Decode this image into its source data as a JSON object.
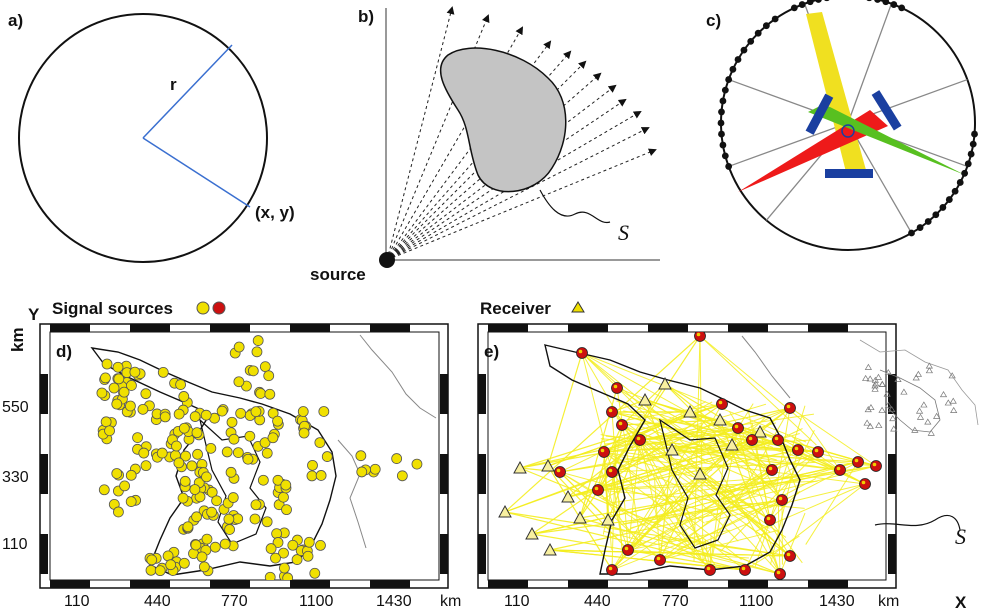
{
  "panels": {
    "a": {
      "label": "a)",
      "radius_label": "r",
      "point_label": "(x, y)"
    },
    "b": {
      "label": "b)",
      "source_label": "source",
      "object_label": "S"
    },
    "c": {
      "label": "c)"
    },
    "d": {
      "label": "d)",
      "legend": "Signal sources",
      "y_axis_title": "Y",
      "y_axis_unit": "km",
      "x_axis_unit": "km",
      "x_ticks": [
        "110",
        "440",
        "770",
        "1100",
        "1430"
      ],
      "y_ticks": [
        "550",
        "330",
        "110"
      ]
    },
    "e": {
      "label": "e)",
      "legend": "Receiver",
      "x_axis_unit": "km",
      "x_axis_title": "X",
      "object_label": "S",
      "x_ticks": [
        "110",
        "440",
        "770",
        "1100",
        "1430"
      ]
    }
  },
  "colors": {
    "source_yellow": "#f0e000",
    "receiver_red": "#cc1010",
    "ray_yellow": "#f4ee20",
    "blue_bar": "#1a3fa0",
    "green_beam": "#58c020",
    "red_beam": "#ee1a1a",
    "blob_gray": "#c4c4c4"
  }
}
